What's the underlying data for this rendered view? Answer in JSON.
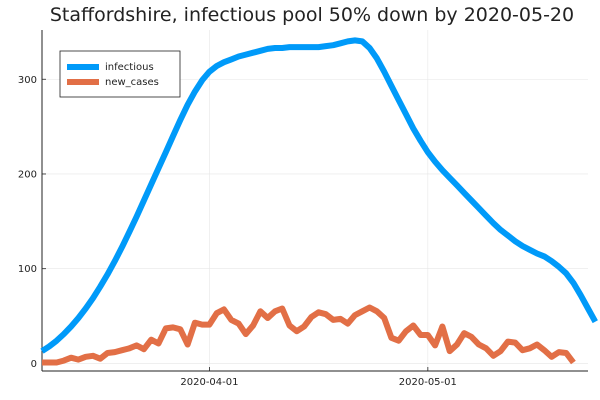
{
  "chart_data": {
    "type": "line",
    "title": "Staffordshire, infectious pool 50% down by 2020-05-20",
    "xlabel": "",
    "ylabel": "",
    "x_start": "2020-03-09",
    "x_end": "2020-05-23",
    "xticks": [
      {
        "date": "2020-04-01",
        "label": "2020-04-01"
      },
      {
        "date": "2020-05-01",
        "label": "2020-05-01"
      }
    ],
    "ylim": [
      -8,
      352
    ],
    "yticks": [
      0,
      100,
      200,
      300
    ],
    "grid": true,
    "legend_position": "top-left",
    "series": [
      {
        "name": "infectious",
        "color": "#009af9",
        "values": [
          13,
          18,
          24,
          31,
          39,
          48,
          58,
          69,
          81,
          94,
          108,
          123,
          139,
          155,
          172,
          189,
          206,
          223,
          240,
          257,
          273,
          287,
          299,
          308,
          314,
          318,
          321,
          324,
          326,
          328,
          330,
          332,
          333,
          333,
          334,
          334,
          334,
          334,
          334,
          335,
          336,
          338,
          340,
          341,
          340,
          333,
          322,
          308,
          293,
          278,
          263,
          248,
          235,
          223,
          213,
          204,
          196,
          188,
          180,
          172,
          164,
          156,
          148,
          141,
          135,
          129,
          124,
          120,
          116,
          113,
          108,
          102,
          95,
          85,
          72,
          58,
          44
        ]
      },
      {
        "name": "new_cases",
        "color": "#e26f46",
        "values": [
          1,
          1,
          1,
          3,
          6,
          4,
          7,
          8,
          5,
          11,
          12,
          14,
          16,
          19,
          15,
          25,
          21,
          37,
          38,
          36,
          20,
          43,
          41,
          41,
          53,
          57,
          46,
          42,
          31,
          40,
          55,
          48,
          55,
          58,
          40,
          34,
          39,
          49,
          54,
          52,
          46,
          47,
          42,
          51,
          55,
          59,
          55,
          48,
          27,
          24,
          34,
          40,
          30,
          30,
          19,
          39,
          13,
          20,
          32,
          28,
          20,
          16,
          8,
          13,
          23,
          22,
          14,
          16,
          20,
          14,
          7,
          12,
          11,
          1
        ]
      }
    ]
  }
}
